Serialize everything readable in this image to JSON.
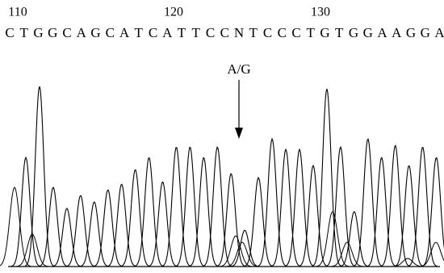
{
  "positions": [
    "110",
    "120",
    "130"
  ],
  "sequence": [
    "C",
    "T",
    "G",
    "G",
    "C",
    "A",
    "G",
    "C",
    "A",
    "T",
    "C",
    "A",
    "T",
    "T",
    "C",
    "C",
    "N",
    "T",
    "C",
    "C",
    "C",
    "T",
    "G",
    "T",
    "G",
    "G",
    "A",
    "A",
    "G",
    "G",
    "A"
  ],
  "annotation": "A/G"
}
